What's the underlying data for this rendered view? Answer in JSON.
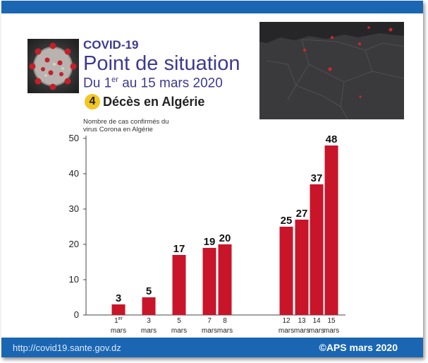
{
  "header": {
    "title_line1": "COVID-19",
    "title_line2": "Point de situation",
    "title_line3_prefix": "Du 1",
    "title_line3_sup": "er",
    "title_line3_suffix": " au 15 mars 2020",
    "deaths_count": "4",
    "deaths_label": "Décès en Algérie"
  },
  "footer": {
    "url": "http://covid19.sante.gov.dz",
    "credit": "©APS mars 2020"
  },
  "colors": {
    "brand_blue": "#1a66b3",
    "title_purple": "#3d3a91",
    "bar_red": "#c8152a",
    "badge_yellow": "#f3c623"
  },
  "chart_data": {
    "type": "bar",
    "ylabel": "Nombre de cas confirmés du virus Corona en Algérie",
    "ylim": [
      0,
      50
    ],
    "yticks": [
      0,
      10,
      20,
      30,
      40,
      50
    ],
    "categories": [
      {
        "day": "1",
        "sup": "er",
        "month": "mars"
      },
      {
        "day": "3",
        "sup": "",
        "month": "mars"
      },
      {
        "day": "5",
        "sup": "",
        "month": "mars"
      },
      {
        "day": "7",
        "sup": "",
        "month": "mars"
      },
      {
        "day": "8",
        "sup": "",
        "month": "mars"
      },
      {
        "day": "12",
        "sup": "",
        "month": "mars"
      },
      {
        "day": "13",
        "sup": "",
        "month": "mars"
      },
      {
        "day": "14",
        "sup": "",
        "month": "mars"
      },
      {
        "day": "15",
        "sup": "",
        "month": "mars"
      }
    ],
    "values": [
      3,
      5,
      17,
      19,
      20,
      25,
      27,
      37,
      48
    ],
    "grid": false,
    "legend": "none"
  }
}
